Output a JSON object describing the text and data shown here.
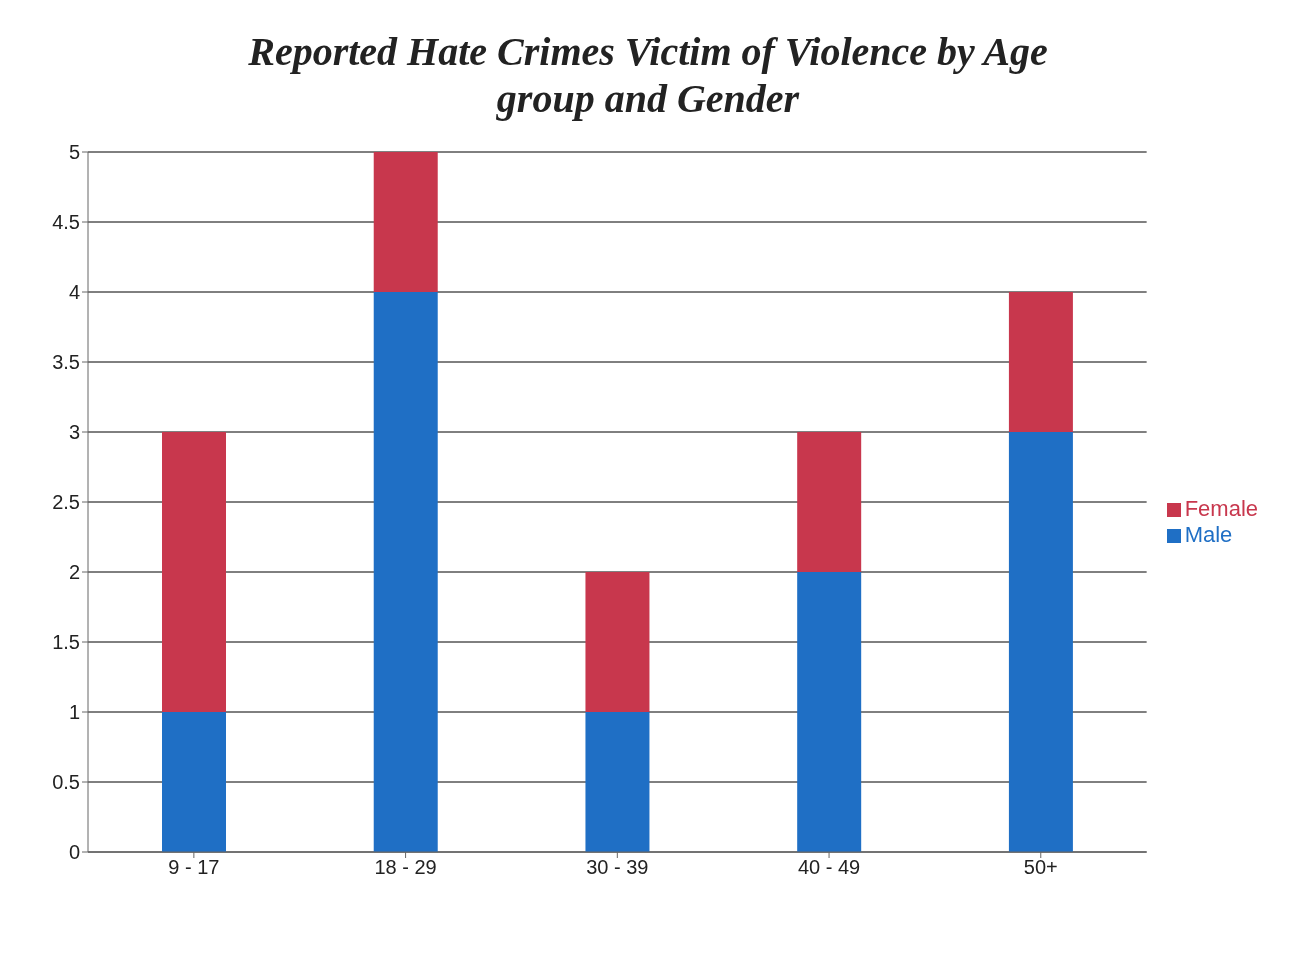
{
  "chart_data": {
    "type": "bar",
    "title": "Reported Hate Crimes Victim of Violence by Age group and Gender",
    "categories": [
      "9 - 17",
      "18 - 29",
      "30 - 39",
      "40 - 49",
      "50+"
    ],
    "series": [
      {
        "name": "Male",
        "color": "#1f6fc5",
        "values": [
          1,
          4,
          1,
          2,
          3
        ]
      },
      {
        "name": "Female",
        "color": "#c8374d",
        "values": [
          2,
          1,
          1,
          1,
          1
        ]
      }
    ],
    "stacked": true,
    "ylim": [
      0,
      5
    ],
    "yticks": [
      0,
      0.5,
      1,
      1.5,
      2,
      2.5,
      3,
      3.5,
      4,
      4.5,
      5
    ],
    "grid": "y",
    "legend": "right"
  }
}
